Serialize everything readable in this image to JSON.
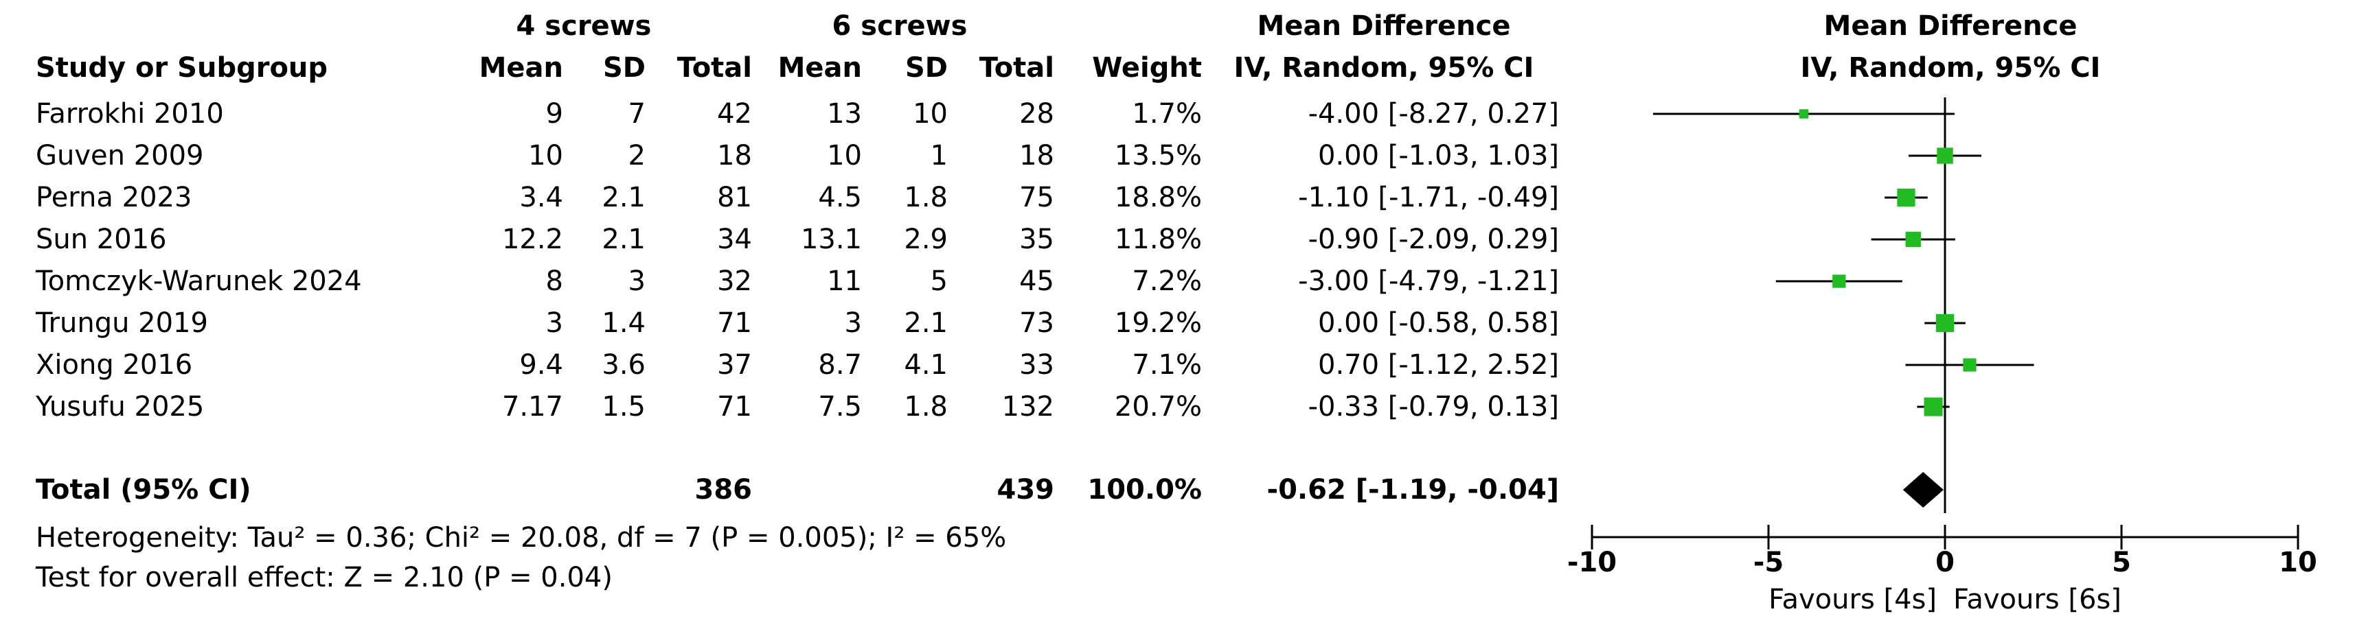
{
  "headers": {
    "group1": "4 screws",
    "group2": "6 screws",
    "md_top": "Mean Difference",
    "study": "Study or Subgroup",
    "mean1": "Mean",
    "sd1": "SD",
    "total1": "Total",
    "mean2": "Mean",
    "sd2": "SD",
    "total2": "Total",
    "weight": "Weight",
    "md_method": "IV, Random, 95% CI",
    "plot_title": "Mean Difference",
    "plot_method": "IV, Random, 95% CI"
  },
  "studies": [
    {
      "name": "Farrokhi 2010",
      "mean1": "9",
      "sd1": "7",
      "total1": "42",
      "mean2": "13",
      "sd2": "10",
      "total2": "28",
      "weight": "1.7%",
      "ci": "-4.00 [-8.27, 0.27]"
    },
    {
      "name": "Guven 2009",
      "mean1": "10",
      "sd1": "2",
      "total1": "18",
      "mean2": "10",
      "sd2": "1",
      "total2": "18",
      "weight": "13.5%",
      "ci": "0.00 [-1.03, 1.03]"
    },
    {
      "name": "Perna 2023",
      "mean1": "3.4",
      "sd1": "2.1",
      "total1": "81",
      "mean2": "4.5",
      "sd2": "1.8",
      "total2": "75",
      "weight": "18.8%",
      "ci": "-1.10 [-1.71, -0.49]"
    },
    {
      "name": "Sun 2016",
      "mean1": "12.2",
      "sd1": "2.1",
      "total1": "34",
      "mean2": "13.1",
      "sd2": "2.9",
      "total2": "35",
      "weight": "11.8%",
      "ci": "-0.90 [-2.09, 0.29]"
    },
    {
      "name": "Tomczyk-Warunek 2024",
      "mean1": "8",
      "sd1": "3",
      "total1": "32",
      "mean2": "11",
      "sd2": "5",
      "total2": "45",
      "weight": "7.2%",
      "ci": "-3.00 [-4.79, -1.21]"
    },
    {
      "name": "Trungu 2019",
      "mean1": "3",
      "sd1": "1.4",
      "total1": "71",
      "mean2": "3",
      "sd2": "2.1",
      "total2": "73",
      "weight": "19.2%",
      "ci": "0.00 [-0.58, 0.58]"
    },
    {
      "name": "Xiong 2016",
      "mean1": "9.4",
      "sd1": "3.6",
      "total1": "37",
      "mean2": "8.7",
      "sd2": "4.1",
      "total2": "33",
      "weight": "7.1%",
      "ci": "0.70 [-1.12, 2.52]"
    },
    {
      "name": "Yusufu 2025",
      "mean1": "7.17",
      "sd1": "1.5",
      "total1": "71",
      "mean2": "7.5",
      "sd2": "1.8",
      "total2": "132",
      "weight": "20.7%",
      "ci": "-0.33 [-0.79, 0.13]"
    }
  ],
  "total": {
    "label": "Total (95% CI)",
    "total1": "386",
    "total2": "439",
    "weight": "100.0%",
    "ci": "-0.62 [-1.19, -0.04]"
  },
  "footer": {
    "heterogeneity": "Heterogeneity: Tau² = 0.36; Chi² = 20.08, df = 7 (P = 0.005); I² = 65%",
    "overall": "Test for overall effect: Z = 2.10 (P = 0.04)"
  },
  "chart_data": {
    "type": "scatter",
    "subtype": "forest",
    "title": "Mean Difference",
    "subtitle": "IV, Random, 95% CI",
    "xlim": [
      -10,
      10
    ],
    "x_ticks": [
      "-10",
      "-5",
      "0",
      "5",
      "10"
    ],
    "x_tick_values": [
      -10,
      -5,
      0,
      5,
      10
    ],
    "favours_left": "Favours [4s]",
    "favours_right": "Favours [6s]",
    "marker_color": "#22bb22",
    "series": [
      {
        "study": "Farrokhi 2010",
        "md": -4.0,
        "low": -8.27,
        "high": 0.27,
        "weight": 1.7
      },
      {
        "study": "Guven 2009",
        "md": 0.0,
        "low": -1.03,
        "high": 1.03,
        "weight": 13.5
      },
      {
        "study": "Perna 2023",
        "md": -1.1,
        "low": -1.71,
        "high": -0.49,
        "weight": 18.8
      },
      {
        "study": "Sun 2016",
        "md": -0.9,
        "low": -2.09,
        "high": 0.29,
        "weight": 11.8
      },
      {
        "study": "Tomczyk-Warunek 2024",
        "md": -3.0,
        "low": -4.79,
        "high": -1.21,
        "weight": 7.2
      },
      {
        "study": "Trungu 2019",
        "md": 0.0,
        "low": -0.58,
        "high": 0.58,
        "weight": 19.2
      },
      {
        "study": "Xiong 2016",
        "md": 0.7,
        "low": -1.12,
        "high": 2.52,
        "weight": 7.1
      },
      {
        "study": "Yusufu 2025",
        "md": -0.33,
        "low": -0.79,
        "high": 0.13,
        "weight": 20.7
      }
    ],
    "pooled": {
      "md": -0.62,
      "low": -1.19,
      "high": -0.04
    }
  }
}
